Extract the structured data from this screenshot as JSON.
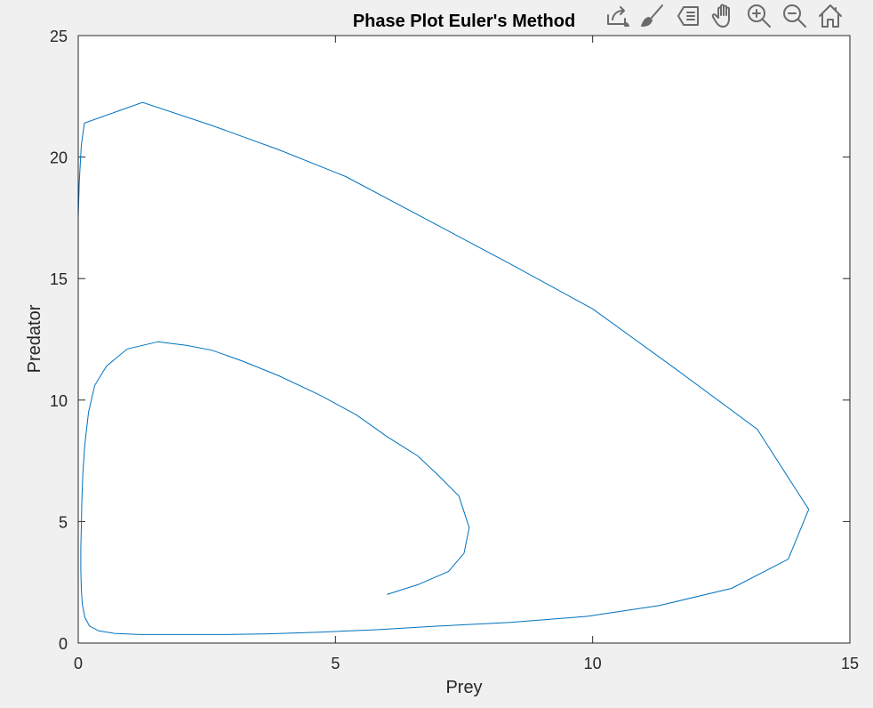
{
  "figure": {
    "background": "#f0f0f0",
    "axes_background": "#ffffff",
    "line_color": "#0072bd"
  },
  "toolbar": {
    "items": [
      {
        "name": "export-icon"
      },
      {
        "name": "brush-icon"
      },
      {
        "name": "datatip-icon"
      },
      {
        "name": "pan-hand-icon"
      },
      {
        "name": "zoom-in-icon"
      },
      {
        "name": "zoom-out-icon"
      },
      {
        "name": "home-icon"
      }
    ]
  },
  "chart_data": {
    "type": "line",
    "title": "Phase Plot Euler's Method",
    "xlabel": "Prey",
    "ylabel": "Predator",
    "xlim": [
      0,
      15
    ],
    "ylim": [
      0,
      25
    ],
    "xticks": [
      0,
      5,
      10,
      15
    ],
    "yticks": [
      0,
      5,
      10,
      15,
      20,
      25
    ],
    "grid": false,
    "series": [
      {
        "x": [
          6.0,
          6.6,
          7.2,
          7.5,
          7.6,
          7.4,
          7.0,
          6.6,
          6.0,
          5.4,
          4.7,
          3.9,
          3.2,
          2.6,
          2.1,
          1.55,
          0.95,
          0.55,
          0.32,
          0.2,
          0.13,
          0.09,
          0.07,
          0.06,
          0.05,
          0.05,
          0.06,
          0.08,
          0.13,
          0.22,
          0.4,
          0.7,
          1.2,
          2.0,
          2.8,
          3.7,
          4.7,
          5.8,
          7.0,
          8.4,
          9.9,
          11.3,
          12.7,
          13.8,
          14.2,
          13.2,
          11.6,
          10.0,
          8.4,
          6.8,
          5.2,
          3.9,
          2.6,
          1.25,
          0.12,
          0.06,
          0.02,
          0.0
        ],
        "y": [
          2.0,
          2.4,
          2.95,
          3.7,
          4.75,
          6.05,
          6.9,
          7.7,
          8.5,
          9.4,
          10.2,
          11.0,
          11.6,
          12.05,
          12.25,
          12.4,
          12.1,
          11.4,
          10.6,
          9.5,
          8.2,
          7.0,
          5.9,
          4.8,
          3.9,
          3.0,
          2.2,
          1.6,
          1.05,
          0.7,
          0.5,
          0.4,
          0.35,
          0.35,
          0.35,
          0.38,
          0.45,
          0.55,
          0.7,
          0.85,
          1.1,
          1.55,
          2.25,
          3.45,
          5.5,
          8.8,
          11.3,
          13.75,
          15.6,
          17.4,
          19.2,
          20.3,
          21.3,
          22.25,
          21.4,
          20.5,
          19.0,
          17.5
        ]
      }
    ]
  }
}
